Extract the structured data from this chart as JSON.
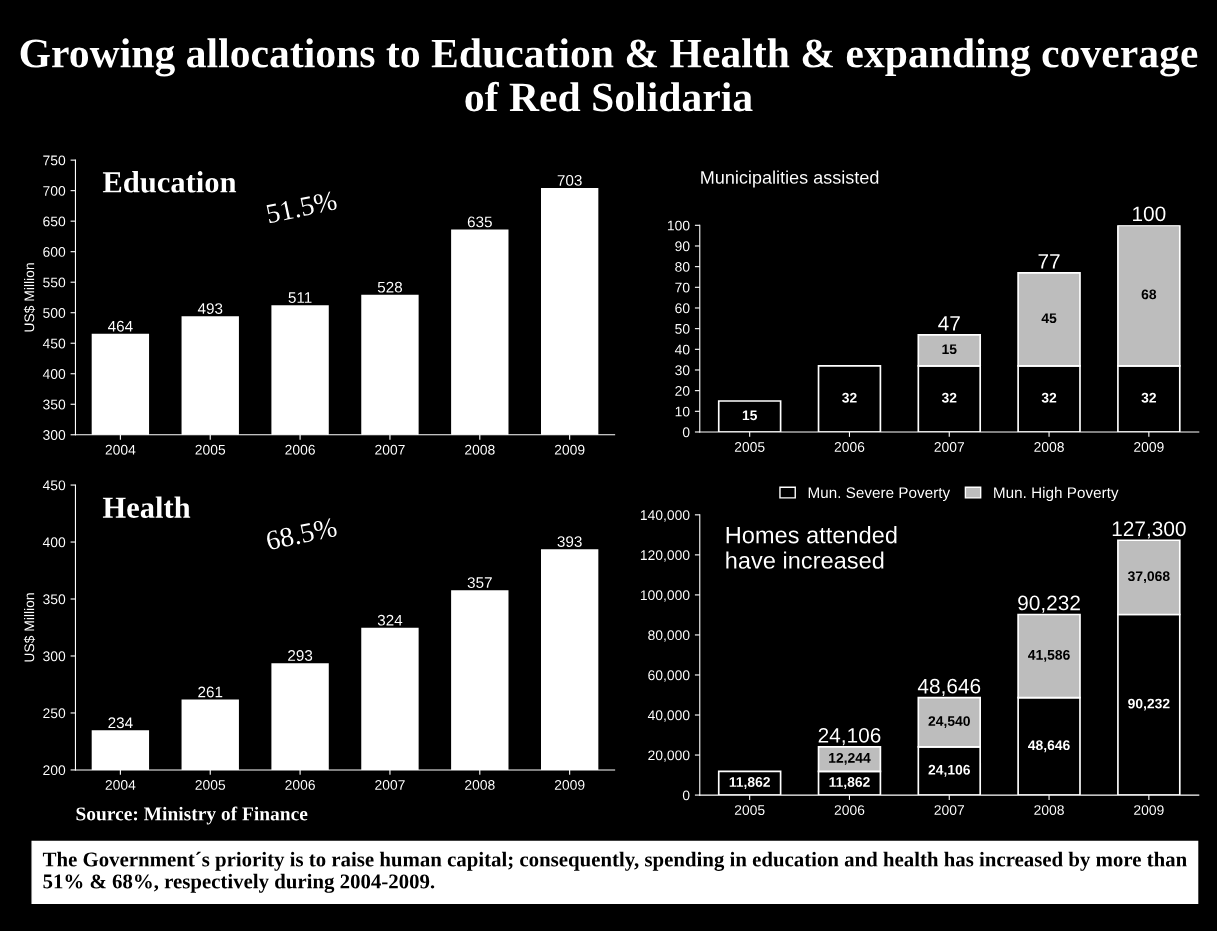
{
  "chart_data": [
    {
      "type": "bar",
      "title": "Growing allocations to Education & Health & expanding coverage of Red Solidaria",
      "subtitle": "Education",
      "ylabel": "US$ Million",
      "categories": [
        "2004",
        "2005",
        "2006",
        "2007",
        "2008",
        "2009"
      ],
      "series": [
        {
          "color": "#ffffff",
          "values": [
            464,
            493,
            511,
            528,
            635,
            703
          ]
        }
      ],
      "ylim": [
        300,
        750
      ],
      "yticks": [
        300,
        350,
        400,
        450,
        500,
        550,
        600,
        650,
        700,
        750
      ],
      "data_labels": true,
      "grid": false,
      "legend": false,
      "annotations": [
        "51.5%",
        "The Government´s priority is to raise human capital; consequently, spending in education and health has increased by more than 51% & 68%, respectively during 2004-2009."
      ]
    },
    {
      "type": "bar",
      "title": "Municipalities assisted",
      "categories": [
        "2005",
        "2006",
        "2007",
        "2008",
        "2009"
      ],
      "stacked": true,
      "series": [
        {
          "color": "#000000",
          "values": [
            15,
            32,
            32,
            32,
            32
          ]
        },
        {
          "color": "#bdbdbd",
          "values": [
            null,
            null,
            15,
            45,
            68
          ]
        }
      ],
      "totals": [
        null,
        null,
        "47",
        "77",
        "100"
      ],
      "ylim": [
        0,
        100
      ],
      "yticks": [
        0,
        10,
        20,
        30,
        40,
        50,
        60,
        70,
        80,
        90,
        100
      ],
      "data_labels": true,
      "grid": false,
      "legend": false
    },
    {
      "type": "bar",
      "subtitle": "Health",
      "ylabel": "US$ Million",
      "categories": [
        "2004",
        "2005",
        "2006",
        "2007",
        "2008",
        "2009"
      ],
      "series": [
        {
          "color": "#ffffff",
          "values": [
            234,
            261,
            293,
            324,
            357,
            393
          ]
        }
      ],
      "ylim": [
        200,
        450
      ],
      "yticks": [
        200,
        250,
        300,
        350,
        400,
        450
      ],
      "data_labels": true,
      "grid": false,
      "legend": false,
      "annotations": [
        "68.5%",
        "Source: Ministry of Finance"
      ]
    },
    {
      "type": "bar",
      "subtitle": "Homes attended\nhave increased",
      "categories": [
        "2005",
        "2006",
        "2007",
        "2008",
        "2009"
      ],
      "stacked": true,
      "series": [
        {
          "name": "Mun. Severe Poverty",
          "color": "#000000",
          "values": [
            11862,
            11862,
            24106,
            48646,
            90232
          ],
          "value_labels": [
            "11,862",
            "11,862",
            "24,106",
            "48,646",
            "90,232"
          ]
        },
        {
          "name": "Mun. High Poverty",
          "color": "#bdbdbd",
          "values": [
            null,
            12244,
            24540,
            41586,
            37068
          ],
          "value_labels": [
            null,
            "12,244",
            "24,540",
            "41,586",
            "37,068"
          ]
        }
      ],
      "totals": [
        null,
        "24,106",
        "48,646",
        "90,232",
        "127,300"
      ],
      "ylim": [
        0,
        140000
      ],
      "yticks": [
        0,
        {
          "value": 20000,
          "label": "20,000"
        },
        {
          "value": 40000,
          "label": "40,000"
        },
        {
          "value": 60000,
          "label": "60,000"
        },
        {
          "value": 80000,
          "label": "80,000"
        },
        {
          "value": 100000,
          "label": "100,000"
        },
        {
          "value": 120000,
          "label": "120,000"
        },
        {
          "value": 140000,
          "label": "140,000"
        }
      ],
      "grid": false,
      "legend": "top"
    }
  ]
}
